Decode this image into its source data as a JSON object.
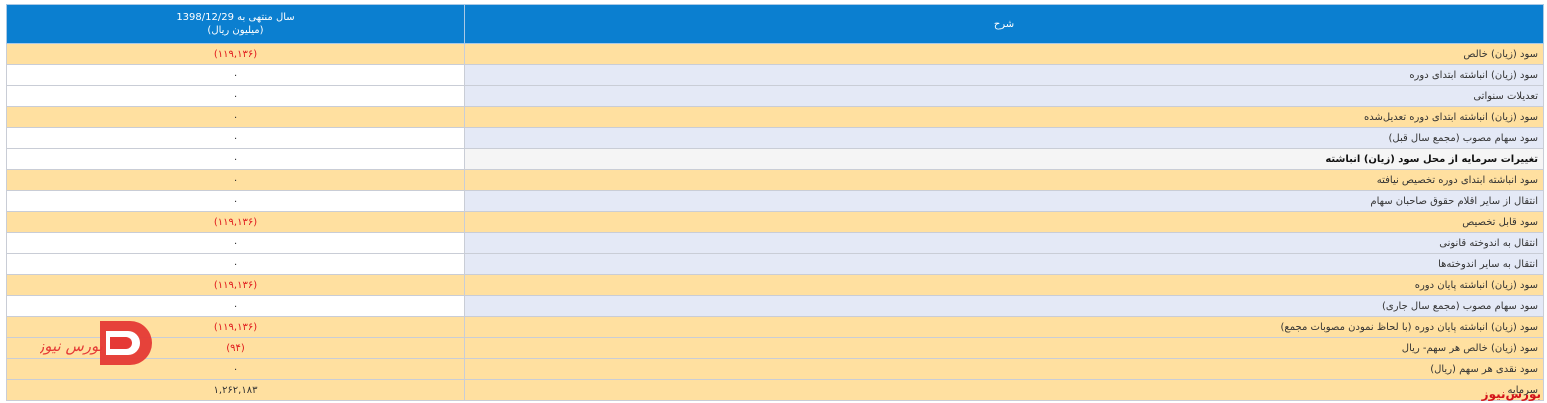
{
  "header": {
    "period_line1": "سال منتهی به 1398/12/29",
    "period_line2": "(میلیون ریال)",
    "description": "شرح"
  },
  "rows": [
    {
      "label": "سود (زیان) خالص",
      "value": "(۱۱۹,۱۳۶)",
      "style": "hl",
      "negative": true
    },
    {
      "label": "سود (زیان) انباشته ابتدای دوره",
      "value": "۰",
      "style": "plain",
      "negative": false
    },
    {
      "label": "تعدیلات سنواتی",
      "value": "۰",
      "style": "plain",
      "negative": false
    },
    {
      "label": "سود (زیان) انباشته ابتدای دوره تعدیل‌شده",
      "value": "۰",
      "style": "hl",
      "negative": false
    },
    {
      "label": "سود سهام مصوب (مجمع سال قبل)",
      "value": "۰",
      "style": "plain",
      "negative": false
    },
    {
      "label": "تغییرات سرمایه از محل سود (زیان) انباشته",
      "value": "۰",
      "style": "bold",
      "negative": false
    },
    {
      "label": "سود انباشته ابتدای دوره تخصیص نیافته",
      "value": "۰",
      "style": "hl",
      "negative": false
    },
    {
      "label": "انتقال از سایر اقلام حقوق صاحبان سهام",
      "value": "۰",
      "style": "plain",
      "negative": false
    },
    {
      "label": "سود قابل تخصیص",
      "value": "(۱۱۹,۱۳۶)",
      "style": "hl",
      "negative": true
    },
    {
      "label": "انتقال به اندوخته قانونی",
      "value": "۰",
      "style": "plain",
      "negative": false
    },
    {
      "label": "انتقال به سایر اندوخته‌ها",
      "value": "۰",
      "style": "plain",
      "negative": false
    },
    {
      "label": "سود (زیان) انباشته پایان دوره",
      "value": "(۱۱۹,۱۳۶)",
      "style": "hl",
      "negative": true
    },
    {
      "label": "سود سهام مصوب (مجمع سال جاری)",
      "value": "۰",
      "style": "plain",
      "negative": false
    },
    {
      "label": "سود (زیان) انباشته پایان دوره (با لحاظ نمودن مصوبات مجمع)",
      "value": "(۱۱۹,۱۳۶)",
      "style": "hl",
      "negative": true
    },
    {
      "label": "سود (زیان) خالص هر سهم- ریال",
      "value": "(۹۴)",
      "style": "hl",
      "negative": true
    },
    {
      "label": "سود نقدی هر سهم (ریال)",
      "value": "۰",
      "style": "hl",
      "negative": false
    },
    {
      "label": "سرمایه",
      "value": "۱,۲۶۲,۱۸۳",
      "style": "hl",
      "negative": false
    }
  ],
  "watermark": {
    "logo_text": "بورس نیوز",
    "footer_text": "بورس‌نیوز"
  },
  "colors": {
    "header_bg": "#0b7fd0",
    "highlight_row": "#ffe0a0",
    "plain_label_bg": "#e4e9f6",
    "negative_text": "#e0191c",
    "logo_red": "#e53935"
  }
}
